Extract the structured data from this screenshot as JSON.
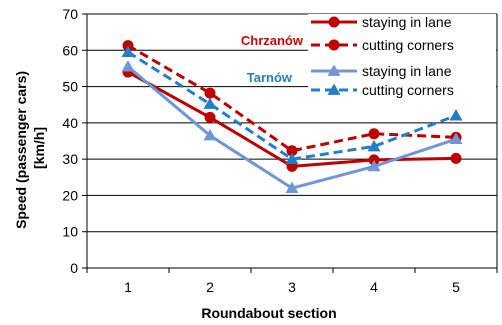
{
  "chart_data": {
    "type": "line",
    "xlabel": "Roundabout section",
    "ylabel": "Speed (passenger cars) [km/h]",
    "ylabel_lines": [
      "Speed (passenger cars)",
      "[km/h]"
    ],
    "ylim": [
      0,
      70
    ],
    "yticks": [
      0,
      10,
      20,
      30,
      40,
      50,
      60,
      70
    ],
    "categories": [
      "1",
      "2",
      "3",
      "4",
      "5"
    ],
    "grid": "horizontal",
    "legend_position": "top-right",
    "groups": [
      {
        "label": "Chrzanów",
        "color": "#dd0000"
      },
      {
        "label": "Tarnów",
        "color": "#1f7fc8"
      }
    ],
    "series": [
      {
        "name": "staying in lane",
        "group": "Chrzanów",
        "color": "#c00000",
        "style": "solid",
        "marker": "circle",
        "values": [
          54,
          41.5,
          28,
          29.8,
          30.2
        ]
      },
      {
        "name": "cutting corners",
        "group": "Chrzanów",
        "color": "#c00000",
        "style": "dashed",
        "marker": "circle",
        "values": [
          61.3,
          48.2,
          32.3,
          37,
          36
        ]
      },
      {
        "name": "staying in lane",
        "group": "Tarnów",
        "color": "#6f96d6",
        "style": "solid",
        "marker": "triangle",
        "values": [
          55.5,
          36.5,
          22,
          28,
          35.5
        ]
      },
      {
        "name": "cutting corners",
        "group": "Tarnów",
        "color": "#1f7fc8",
        "style": "dashed",
        "marker": "triangle",
        "values": [
          59.5,
          45.2,
          30,
          33.5,
          42
        ]
      }
    ]
  }
}
